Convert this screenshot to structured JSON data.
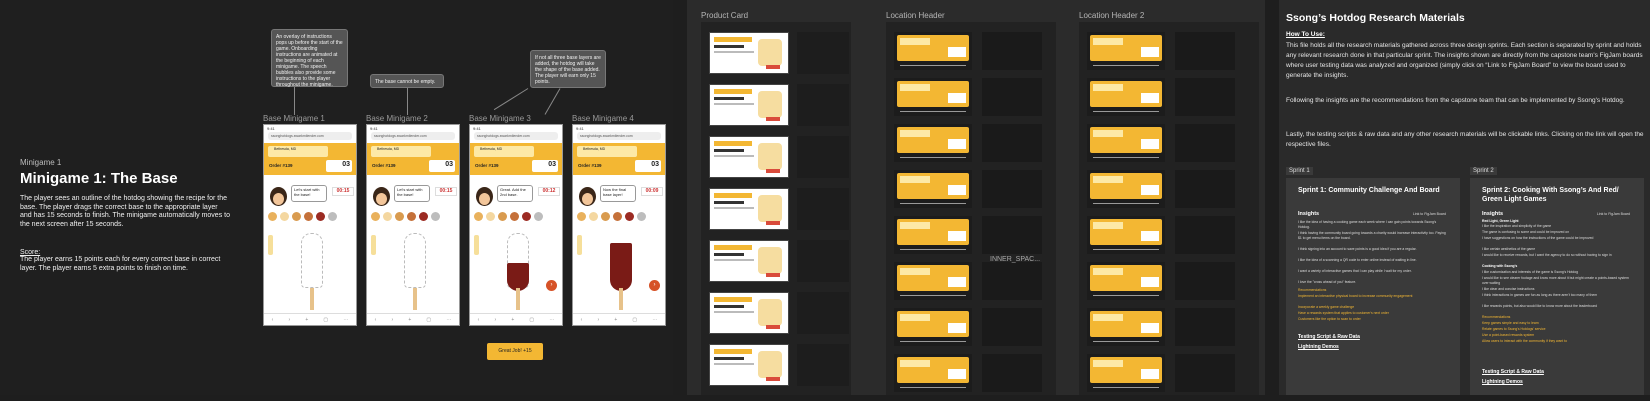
{
  "left": {
    "minigame_label": "Minigame 1",
    "title": "Minigame 1:  The Base",
    "description": "The player sees an outline of the hotdog showing the recipe for the base. The player drags the correct base to the appropriate layer and has 15 seconds to finish. The minigame automatically moves to the next screen after 15 seconds.",
    "score_heading": "Score:",
    "score_text": "The player earns 15 points each for every correct base in correct layer. The player earns 5 extra points to finish on time.",
    "notes": [
      "An overlay of instructions pops up before the start of the game. Onboarding instructions are animated at the beginning of each minigame. The speech bubbles also provide some instructions to the player throughout the minigame.",
      "The base cannot be empty.",
      "If not all three base layers are added, the hotdog will take the shape of the base added. The player will earn only 15 points."
    ],
    "phones": [
      {
        "label": "Base Minigame 1",
        "time": "9:41",
        "url": "ssonghotdogs.swarkmilender.com",
        "location": "Bethesda, MD",
        "order": "Order #139",
        "count": "03",
        "bubble": "Let's start with the base!",
        "timer": "00:15"
      },
      {
        "label": "Base Minigame 2",
        "time": "9:41",
        "url": "ssonghotdogs.swarkmilender.com",
        "location": "Bethesda, MD",
        "order": "Order #139",
        "count": "03",
        "bubble": "Let's start with the base!",
        "timer": "00:15"
      },
      {
        "label": "Base Minigame 3",
        "time": "9:41",
        "url": "ssonghotdogs.swarkmilender.com",
        "location": "Bethesda, MD",
        "order": "Order #139",
        "count": "03",
        "bubble": "Great. Add the 2nd base.",
        "timer": "00:12"
      },
      {
        "label": "Base Minigame 4",
        "time": "9:41",
        "url": "ssonghotdogs.swarkmilender.com",
        "location": "Bethesda, MD",
        "order": "Order #139",
        "count": "03",
        "bubble": "Now the final base layer!",
        "timer": "00:09"
      }
    ],
    "great_button": "Great Job! +15",
    "colors": {
      "accent": "#f3b733",
      "sauce": "#7a1b16"
    }
  },
  "middle": {
    "product_card_label": "Product Card",
    "location_header_label": "Location Header",
    "location_header2_label": "Location Header 2",
    "spacer_text": "INNER_SPAC..."
  },
  "right": {
    "title": "Ssong’s Hotdog Research Materials",
    "howto": "How To Use:",
    "p1": "This file holds all the research materials gathered across three design sprints. Each section is separated by sprint and holds any relevant research done in that particular sprint. The insights shown are directly from the capstone team's FigJam boards where user testing data was analyzed and organized (simply click on “Link to FigJam Board” to view the board used to generate the insights.",
    "p2": "Following the insights are the recommendations from the capstone team that can be implemented by Ssong's Hotdog.",
    "p3": "Lastly, the testing scripts & raw data and any other research materials will be clickable links. Clicking on the link will open the respective files.",
    "sprints": [
      {
        "tag": "Sprint 1",
        "title": "Sprint 1: Community Challenge And Board",
        "insights": "Insights",
        "by": "Link to FigJam Board",
        "bullets": [
          "I like the idea of having a cooking game each week where I can gain points towards Ssong's Hotdog.",
          "I think having the community board going towards a charity would increase interactivity too. Paying $1 to get menu items on the board.",
          "I think signing into an account to save points is a good idea if you are a regular.",
          "I like the idea of a scanning a QR code to enter online instead of waiting in line.",
          "I want a variety of interactive games that I can play while I wait for my order.",
          "I love the \"cross ahead of you\" feature."
        ],
        "rec_title": "Recommendations",
        "recs": [
          "Implement an interactive physical board to increase community engagement",
          "Incorporate a weekly game challenge",
          "Have a rewards system that applies to customer's next order",
          "Customers like the option to scan to order"
        ],
        "link1": "Testing Script & Raw Data",
        "link2": "Lightning Demos"
      },
      {
        "tag": "Sprint 2",
        "title": "Sprint 2: Cooking With Ssong’s And Red/ Green Light Games",
        "insights": "Insights",
        "by": "Link to FigJam Board",
        "bullets": [
          "Red Light, Green Light",
          "I like the inspiration and simplicity of the game",
          "The game is confusing to some and could be improved on",
          "I have suggestions on how the instructions of the game could be improved",
          "I like certain aesthetics of the game",
          "I would like to receive rewards, but I want the agency to do so without having to sign in",
          "Cooking with Ssong's",
          "I like customization and interests of the game is Ssong's Hotdog",
          "I would like to see clearer footage and know more about it but might create a points-based system over waiting",
          "I like clear and concise instructions",
          "I think interactions in games are fun as long as there aren't too many of them",
          "I like rewards points, but also would like to know more about the leaderboard"
        ],
        "rec_title": "Recommendations",
        "recs": [
          "Keep games simple and easy to learn",
          "Relate games to Ssong's Hotdogs' service",
          "Use a point-based rewards system",
          "Allow users to interact with the community if they want to"
        ],
        "link1": "Testing Script & Raw Data",
        "link2": "Lightning Demos"
      }
    ]
  }
}
